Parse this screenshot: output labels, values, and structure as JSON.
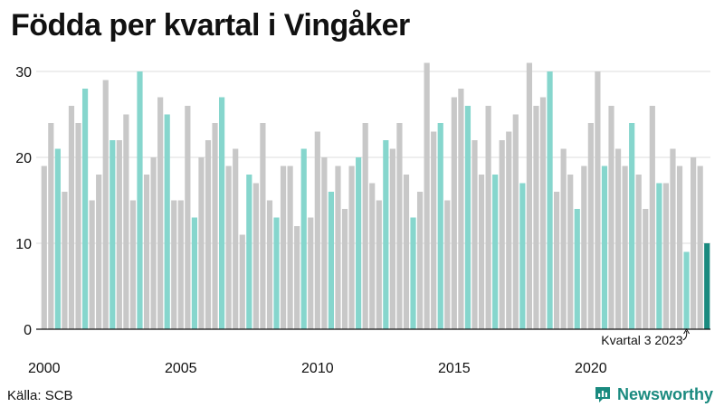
{
  "title": "Födda per kvartal i Vingåker",
  "source": "Källa: SCB",
  "brand": {
    "name": "Newsworthy",
    "icon": "newsworthy-chart-icon"
  },
  "colors": {
    "default": "#c8c8c8",
    "q3": "#86d6cd",
    "latest": "#1a8a7f",
    "grid": "#dcdcdc",
    "axis": "#111111",
    "brand": "#1a8a7f"
  },
  "chart_data": {
    "type": "bar",
    "title": "Födda per kvartal i Vingåker",
    "xlabel": "",
    "ylabel": "",
    "ylim": [
      0,
      32
    ],
    "yticks": [
      0,
      10,
      20,
      30
    ],
    "xtick_labels": [
      "2000",
      "2005",
      "2010",
      "2015",
      "2020"
    ],
    "grid": true,
    "start": {
      "year": 2000,
      "quarter": 1
    },
    "values": [
      19,
      24,
      21,
      16,
      26,
      24,
      28,
      15,
      18,
      29,
      22,
      22,
      25,
      15,
      30,
      18,
      20,
      27,
      25,
      15,
      15,
      26,
      13,
      20,
      22,
      24,
      27,
      19,
      21,
      11,
      18,
      17,
      24,
      15,
      13,
      19,
      19,
      12,
      21,
      13,
      23,
      20,
      16,
      19,
      14,
      19,
      20,
      24,
      17,
      15,
      22,
      21,
      24,
      18,
      13,
      16,
      31,
      23,
      24,
      15,
      27,
      28,
      26,
      22,
      18,
      26,
      18,
      22,
      23,
      25,
      17,
      31,
      26,
      27,
      30,
      16,
      21,
      18,
      14,
      19,
      24,
      30,
      19,
      26,
      21,
      19,
      24,
      18,
      14,
      26,
      17,
      17,
      21,
      19,
      9,
      20,
      19,
      10
    ],
    "highlight_quarter": 3,
    "annotation": "Kvartal 3 2023"
  }
}
